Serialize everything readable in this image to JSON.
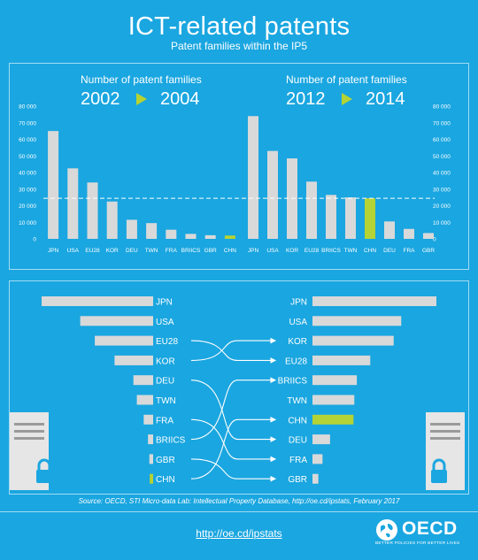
{
  "header": {
    "title": "ICT-related patents",
    "subtitle": "Patent families within the IP5"
  },
  "colors": {
    "background": "#1aa6e0",
    "bar": "#d9d9d9",
    "highlight": "#b5d334",
    "text": "#ffffff"
  },
  "icons": {
    "arrow": "triangle-right-icon",
    "document": "document-icon",
    "lock": "padlock-icon",
    "logo": "oecd-globe-icon"
  },
  "chart_data": [
    {
      "type": "bar",
      "heading": "Number of patent families",
      "period_start": "2002",
      "period_end": "2004",
      "categories": [
        "JPN",
        "USA",
        "EU28",
        "KOR",
        "DEU",
        "TWN",
        "FRA",
        "BRIICS",
        "GBR",
        "CHN"
      ],
      "values": [
        65000,
        42500,
        34000,
        22500,
        11500,
        9500,
        5500,
        3000,
        2200,
        2000
      ],
      "highlight": "CHN",
      "yticks": [
        0,
        10000,
        20000,
        30000,
        40000,
        50000,
        60000,
        70000,
        80000
      ],
      "ytick_labels": [
        "0",
        "10 000",
        "20 000",
        "30 000",
        "40 000",
        "50 000",
        "60 000",
        "70 000",
        "80 000"
      ],
      "ylim": [
        0,
        80000
      ]
    },
    {
      "type": "bar",
      "heading": "Number of patent families",
      "period_start": "2012",
      "period_end": "2014",
      "categories": [
        "JPN",
        "USA",
        "KOR",
        "EU28",
        "BRIICS",
        "TWN",
        "CHN",
        "DEU",
        "FRA",
        "GBR"
      ],
      "values": [
        74000,
        53000,
        48500,
        34500,
        26500,
        25000,
        24500,
        10500,
        6000,
        3500
      ],
      "highlight": "CHN",
      "reference_line": 24500,
      "yticks": [
        0,
        10000,
        20000,
        30000,
        40000,
        50000,
        60000,
        70000,
        80000
      ],
      "ytick_labels": [
        "0",
        "10 000",
        "20 000",
        "30 000",
        "40 000",
        "50 000",
        "60 000",
        "70 000",
        "80 000"
      ],
      "ylim": [
        0,
        80000
      ]
    }
  ],
  "ranking": {
    "left": [
      "JPN",
      "USA",
      "EU28",
      "KOR",
      "DEU",
      "TWN",
      "FRA",
      "BRIICS",
      "GBR",
      "CHN"
    ],
    "right": [
      "JPN",
      "USA",
      "KOR",
      "EU28",
      "BRIICS",
      "TWN",
      "CHN",
      "DEU",
      "FRA",
      "GBR"
    ]
  },
  "footer": {
    "source": "Source: OECD, STI Micro-data Lab: Intellectual Property Database, http://oe.cd/ipstats, February 2017",
    "link": "http://oe.cd/ipstats",
    "logo_text": "OECD",
    "tagline": "BETTER POLICIES FOR BETTER LIVES"
  }
}
